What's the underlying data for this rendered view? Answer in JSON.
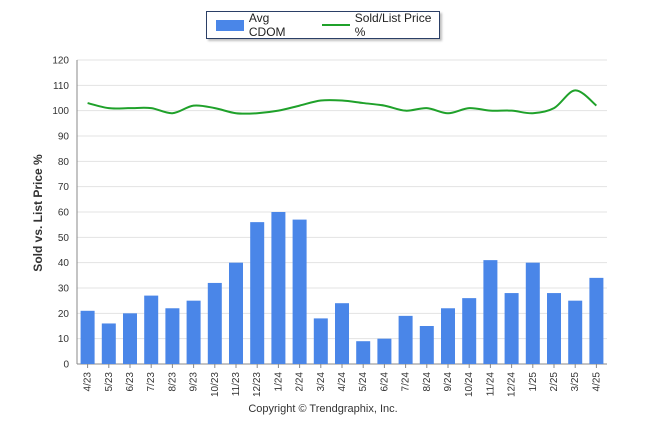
{
  "legend": {
    "bar_label": "Avg CDOM",
    "line_label": "Sold/List Price %"
  },
  "colors": {
    "bar": "#4a86e8",
    "line": "#1fa12a",
    "grid": "#e3e3e3",
    "axis": "#888888"
  },
  "copyright": "Copyright © Trendgraphix, Inc.",
  "chart_data": {
    "type": "bar",
    "ylabel": "Sold vs. List Price %",
    "ylim": [
      0,
      120
    ],
    "yticks": [
      0,
      10,
      20,
      30,
      40,
      50,
      60,
      70,
      80,
      90,
      100,
      110,
      120
    ],
    "grid": true,
    "legend_position": "top",
    "categories": [
      "4/23",
      "5/23",
      "6/23",
      "7/23",
      "8/23",
      "9/23",
      "10/23",
      "11/23",
      "12/23",
      "1/24",
      "2/24",
      "3/24",
      "4/24",
      "5/24",
      "6/24",
      "7/24",
      "8/24",
      "9/24",
      "10/24",
      "11/24",
      "12/24",
      "1/25",
      "2/25",
      "3/25",
      "4/25"
    ],
    "series": [
      {
        "name": "Avg CDOM",
        "type": "bar",
        "values": [
          21,
          16,
          20,
          27,
          22,
          25,
          32,
          40,
          56,
          60,
          57,
          18,
          24,
          9,
          10,
          19,
          15,
          22,
          26,
          41,
          28,
          40,
          28,
          25,
          34
        ]
      },
      {
        "name": "Sold/List Price %",
        "type": "line",
        "values": [
          103,
          101,
          101,
          101,
          99,
          102,
          101,
          99,
          99,
          100,
          102,
          104,
          104,
          103,
          102,
          100,
          101,
          99,
          101,
          100,
          100,
          99,
          101,
          108,
          102
        ]
      }
    ]
  }
}
